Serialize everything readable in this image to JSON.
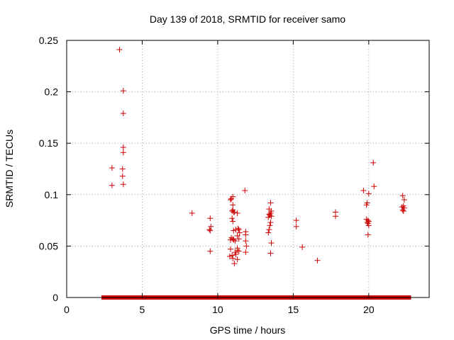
{
  "chart_data": {
    "type": "scatter",
    "title": "Day 139 of 2018, SRMTID for receiver samo",
    "xlabel": "GPS time / hours",
    "ylabel": "SRMTID / TECUs",
    "xlim": [
      0,
      24
    ],
    "ylim": [
      0,
      0.25
    ],
    "x_ticks": [
      0,
      5,
      10,
      15,
      20
    ],
    "y_ticks": [
      0,
      0.05,
      0.1,
      0.15,
      0.2,
      0.25
    ],
    "x_tick_labels": [
      "0",
      "5",
      "10",
      "15",
      "20"
    ],
    "y_tick_labels": [
      "0",
      "0.05",
      "0.1",
      "0.15",
      "0.2",
      "0.25"
    ],
    "grid": true,
    "marker": "+",
    "series_color": "#cc0000",
    "zero_band": {
      "x_start": 2.3,
      "x_end": 22.8,
      "y": 0
    },
    "points": [
      [
        3.5,
        0.241
      ],
      [
        3.75,
        0.201
      ],
      [
        3.75,
        0.179
      ],
      [
        3.75,
        0.146
      ],
      [
        3.75,
        0.141
      ],
      [
        3.0,
        0.126
      ],
      [
        3.7,
        0.125
      ],
      [
        3.7,
        0.118
      ],
      [
        3.0,
        0.109
      ],
      [
        3.75,
        0.11
      ],
      [
        8.3,
        0.082
      ],
      [
        9.5,
        0.077
      ],
      [
        9.55,
        0.069
      ],
      [
        9.45,
        0.066
      ],
      [
        9.5,
        0.065
      ],
      [
        9.5,
        0.045
      ],
      [
        11.0,
        0.098
      ],
      [
        10.9,
        0.096
      ],
      [
        10.85,
        0.095
      ],
      [
        11.0,
        0.09
      ],
      [
        11.0,
        0.085
      ],
      [
        10.95,
        0.084
      ],
      [
        11.05,
        0.083
      ],
      [
        11.1,
        0.083
      ],
      [
        11.3,
        0.082
      ],
      [
        10.95,
        0.077
      ],
      [
        11.0,
        0.074
      ],
      [
        11.2,
        0.066
      ],
      [
        11.05,
        0.065
      ],
      [
        11.35,
        0.067
      ],
      [
        11.4,
        0.066
      ],
      [
        11.45,
        0.063
      ],
      [
        11.3,
        0.06
      ],
      [
        11.4,
        0.057
      ],
      [
        10.9,
        0.058
      ],
      [
        11.0,
        0.057
      ],
      [
        11.05,
        0.056
      ],
      [
        11.15,
        0.055
      ],
      [
        10.85,
        0.056
      ],
      [
        11.3,
        0.048
      ],
      [
        11.3,
        0.046
      ],
      [
        11.15,
        0.044
      ],
      [
        11.4,
        0.045
      ],
      [
        10.85,
        0.047
      ],
      [
        11.2,
        0.042
      ],
      [
        10.8,
        0.04
      ],
      [
        11.0,
        0.038
      ],
      [
        11.3,
        0.037
      ],
      [
        11.1,
        0.033
      ],
      [
        10.95,
        0.041
      ],
      [
        11.8,
        0.104
      ],
      [
        11.85,
        0.064
      ],
      [
        11.85,
        0.061
      ],
      [
        11.85,
        0.055
      ],
      [
        11.9,
        0.05
      ],
      [
        11.85,
        0.044
      ],
      [
        13.5,
        0.092
      ],
      [
        13.4,
        0.086
      ],
      [
        13.55,
        0.084
      ],
      [
        13.5,
        0.082
      ],
      [
        13.4,
        0.081
      ],
      [
        13.45,
        0.08
      ],
      [
        13.55,
        0.079
      ],
      [
        13.35,
        0.078
      ],
      [
        13.5,
        0.073
      ],
      [
        13.45,
        0.07
      ],
      [
        13.4,
        0.066
      ],
      [
        13.35,
        0.063
      ],
      [
        13.55,
        0.053
      ],
      [
        13.5,
        0.043
      ],
      [
        15.2,
        0.075
      ],
      [
        15.2,
        0.069
      ],
      [
        15.6,
        0.049
      ],
      [
        16.6,
        0.036
      ],
      [
        17.8,
        0.083
      ],
      [
        17.8,
        0.079
      ],
      [
        20.3,
        0.131
      ],
      [
        20.35,
        0.108
      ],
      [
        19.65,
        0.104
      ],
      [
        20.0,
        0.101
      ],
      [
        19.9,
        0.092
      ],
      [
        19.85,
        0.09
      ],
      [
        19.85,
        0.076
      ],
      [
        19.95,
        0.075
      ],
      [
        20.0,
        0.074
      ],
      [
        19.9,
        0.073
      ],
      [
        19.95,
        0.072
      ],
      [
        20.0,
        0.07
      ],
      [
        19.95,
        0.061
      ],
      [
        22.25,
        0.099
      ],
      [
        22.35,
        0.095
      ],
      [
        22.3,
        0.089
      ],
      [
        22.2,
        0.088
      ],
      [
        22.35,
        0.087
      ],
      [
        22.25,
        0.085
      ],
      [
        22.3,
        0.084
      ]
    ]
  }
}
